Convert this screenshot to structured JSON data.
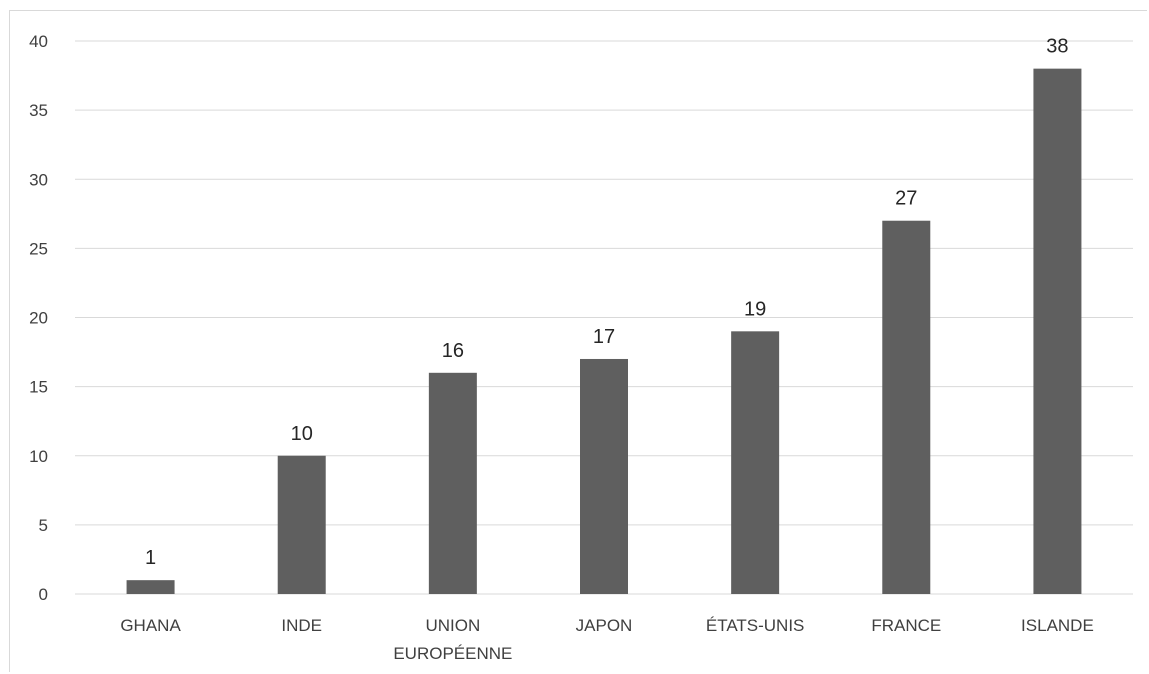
{
  "chart_data": {
    "type": "bar",
    "categories": [
      [
        "GHANA"
      ],
      [
        "INDE"
      ],
      [
        "UNION",
        "EUROPÉENNE"
      ],
      [
        "JAPON"
      ],
      [
        "ÉTATS-UNIS"
      ],
      [
        "FRANCE"
      ],
      [
        "ISLANDE"
      ]
    ],
    "values": [
      1,
      10,
      16,
      17,
      19,
      27,
      38
    ],
    "data_labels": [
      "1",
      "10",
      "16",
      "17",
      "19",
      "27",
      "38"
    ],
    "title": "",
    "xlabel": "",
    "ylabel": "",
    "ylim": [
      0,
      40
    ],
    "yticks": [
      0,
      5,
      10,
      15,
      20,
      25,
      30,
      35,
      40
    ],
    "grid": true,
    "legend": "none",
    "colors": {
      "bar": "#5f5f5f",
      "grid": "#d9d9d9",
      "axis": "#d9d9d9",
      "tick_text": "#404040",
      "label_text": "#262626"
    }
  }
}
